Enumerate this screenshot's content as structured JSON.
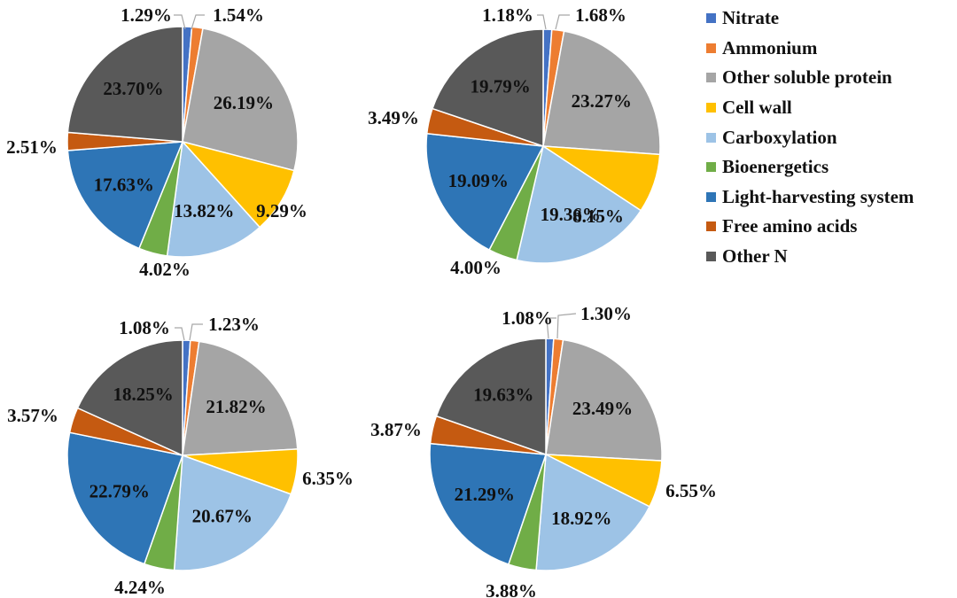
{
  "chart_data": {
    "type": "pie",
    "categories": [
      "Nitrate",
      "Ammonium",
      "Other soluble protein",
      "Cell wall",
      "Carboxylation",
      "Bioenergetics",
      "Light-harvesting system",
      "Free amino acids",
      "Other N"
    ],
    "colors": [
      "#4472C4",
      "#ED7D31",
      "#A5A5A5",
      "#FFC000",
      "#9DC3E6",
      "#70AD47",
      "#2E75B6",
      "#C55A11",
      "#595959"
    ],
    "legend_position": "right",
    "charts": [
      {
        "values": [
          1.29,
          1.54,
          26.19,
          9.29,
          13.82,
          4.02,
          17.63,
          2.51,
          23.7
        ],
        "labels": [
          "1.29%",
          "1.54%",
          "26.19%",
          "9.29%",
          "13.82%",
          "4.02%",
          "17.63%",
          "2.51%",
          "23.70%"
        ]
      },
      {
        "values": [
          1.18,
          1.68,
          23.27,
          8.15,
          19.36,
          4.0,
          19.09,
          3.49,
          19.79
        ],
        "labels": [
          "1.18%",
          "1.68%",
          "23.27%",
          "8.15%",
          "19.36%",
          "4.00%",
          "19.09%",
          "3.49%",
          "19.79%"
        ]
      },
      {
        "values": [
          1.08,
          1.23,
          21.82,
          6.35,
          20.67,
          4.24,
          22.79,
          3.57,
          18.25
        ],
        "labels": [
          "1.08%",
          "1.23%",
          "21.82%",
          "6.35%",
          "20.67%",
          "4.24%",
          "22.79%",
          "3.57%",
          "18.25%"
        ]
      },
      {
        "values": [
          1.08,
          1.3,
          23.49,
          6.55,
          18.92,
          3.88,
          21.29,
          3.87,
          19.63
        ],
        "labels": [
          "1.08%",
          "1.30%",
          "23.49%",
          "6.55%",
          "18.92%",
          "3.88%",
          "21.29%",
          "3.87%",
          "19.63%"
        ]
      }
    ]
  }
}
